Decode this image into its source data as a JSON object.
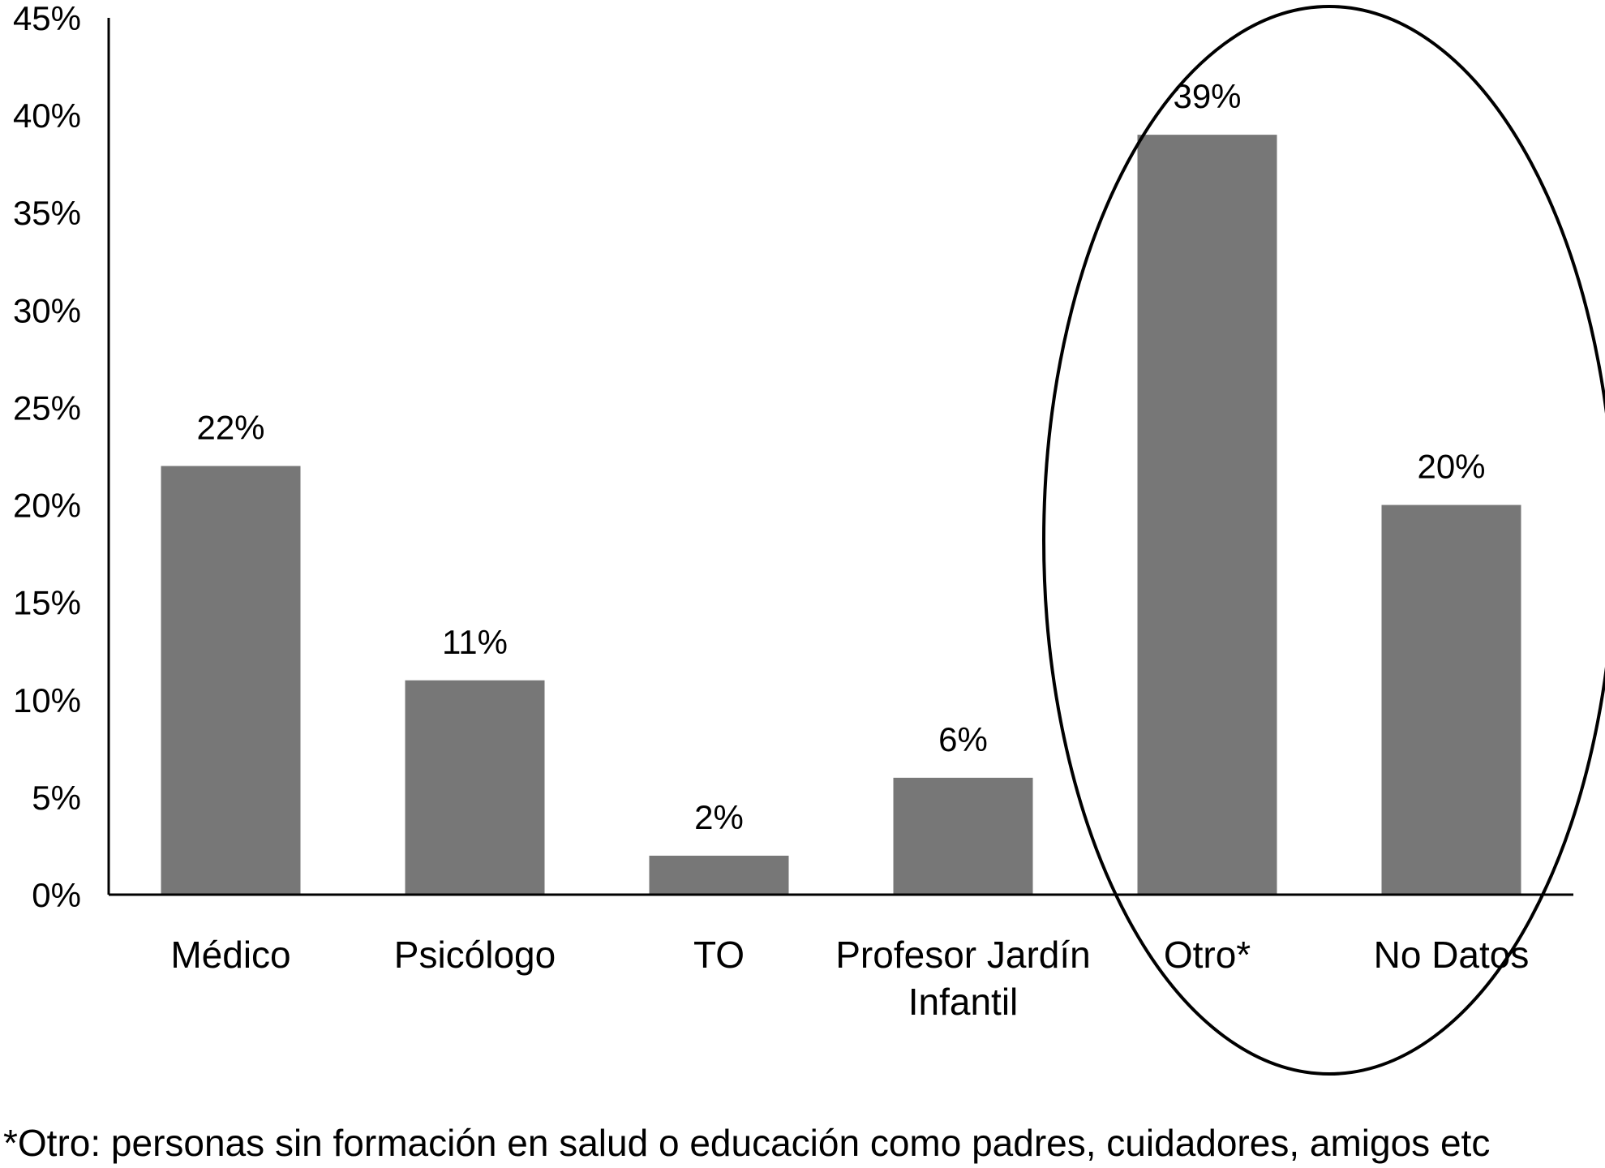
{
  "chart_data": {
    "type": "bar",
    "categories": [
      "Médico",
      "Psicólogo",
      "TO",
      "Profesor Jardín Infantil",
      "Otro*",
      "No Datos"
    ],
    "category_lines": [
      [
        "Médico"
      ],
      [
        "Psicólogo"
      ],
      [
        "TO"
      ],
      [
        "Profesor Jardín",
        "Infantil"
      ],
      [
        "Otro*"
      ],
      [
        "No Datos"
      ]
    ],
    "values": [
      22,
      11,
      2,
      6,
      39,
      20
    ],
    "data_labels": [
      "22%",
      "11%",
      "2%",
      "6%",
      "39%",
      "20%"
    ],
    "yticks": [
      "0%",
      "5%",
      "10%",
      "15%",
      "20%",
      "25%",
      "30%",
      "35%",
      "40%",
      "45%"
    ],
    "ylim": [
      0,
      45
    ],
    "grid": false,
    "bar_color": "#777777",
    "highlight": {
      "shape": "ellipse",
      "categories": [
        "Otro*",
        "No Datos"
      ]
    }
  },
  "footnote": "*Otro: personas sin formación en salud o educación como padres, cuidadores, amigos etc"
}
